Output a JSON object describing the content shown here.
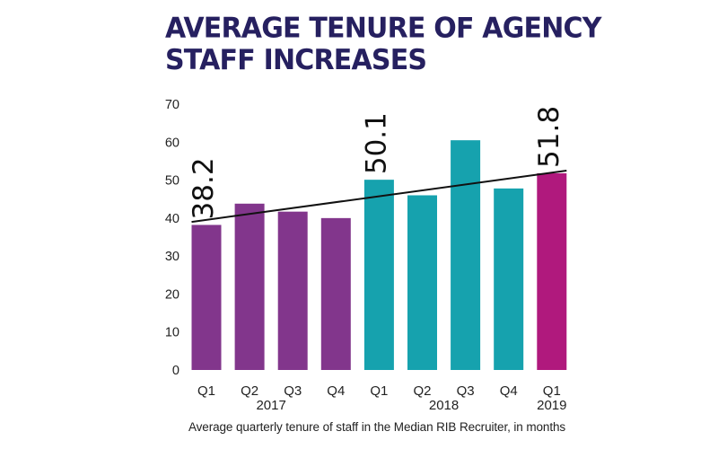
{
  "title_lines": [
    "AVERAGE TENURE OF AGENCY",
    "STAFF INCREASES"
  ],
  "caption": "Average quarterly tenure of staff in the Median RIB Recruiter, in months",
  "chart_data": {
    "type": "bar",
    "title": "AVERAGE TENURE OF AGENCY STAFF INCREASES",
    "categories": [
      "Q1",
      "Q2",
      "Q3",
      "Q4",
      "Q1",
      "Q2",
      "Q3",
      "Q4",
      "Q1"
    ],
    "groups": [
      {
        "label": "2017",
        "start": 0,
        "end": 3,
        "color": "#82368c"
      },
      {
        "label": "2018",
        "start": 4,
        "end": 7,
        "color": "#16a2ae"
      },
      {
        "label": "2019",
        "start": 8,
        "end": 8,
        "color": "#b0197d"
      }
    ],
    "values": [
      38.2,
      43.8,
      41.7,
      40.0,
      50.1,
      46.0,
      60.5,
      47.8,
      51.8
    ],
    "yticks": [
      0,
      10,
      20,
      30,
      40,
      50,
      60,
      70
    ],
    "ylim": [
      0,
      70
    ],
    "xlabel": "",
    "ylabel": "",
    "grid": false,
    "trendline": {
      "start": 39.0,
      "end": 52.5
    },
    "data_labels": [
      {
        "index": 0,
        "text": "38.2"
      },
      {
        "index": 4,
        "text": "50.1"
      },
      {
        "index": 8,
        "text": "51.8"
      }
    ]
  }
}
